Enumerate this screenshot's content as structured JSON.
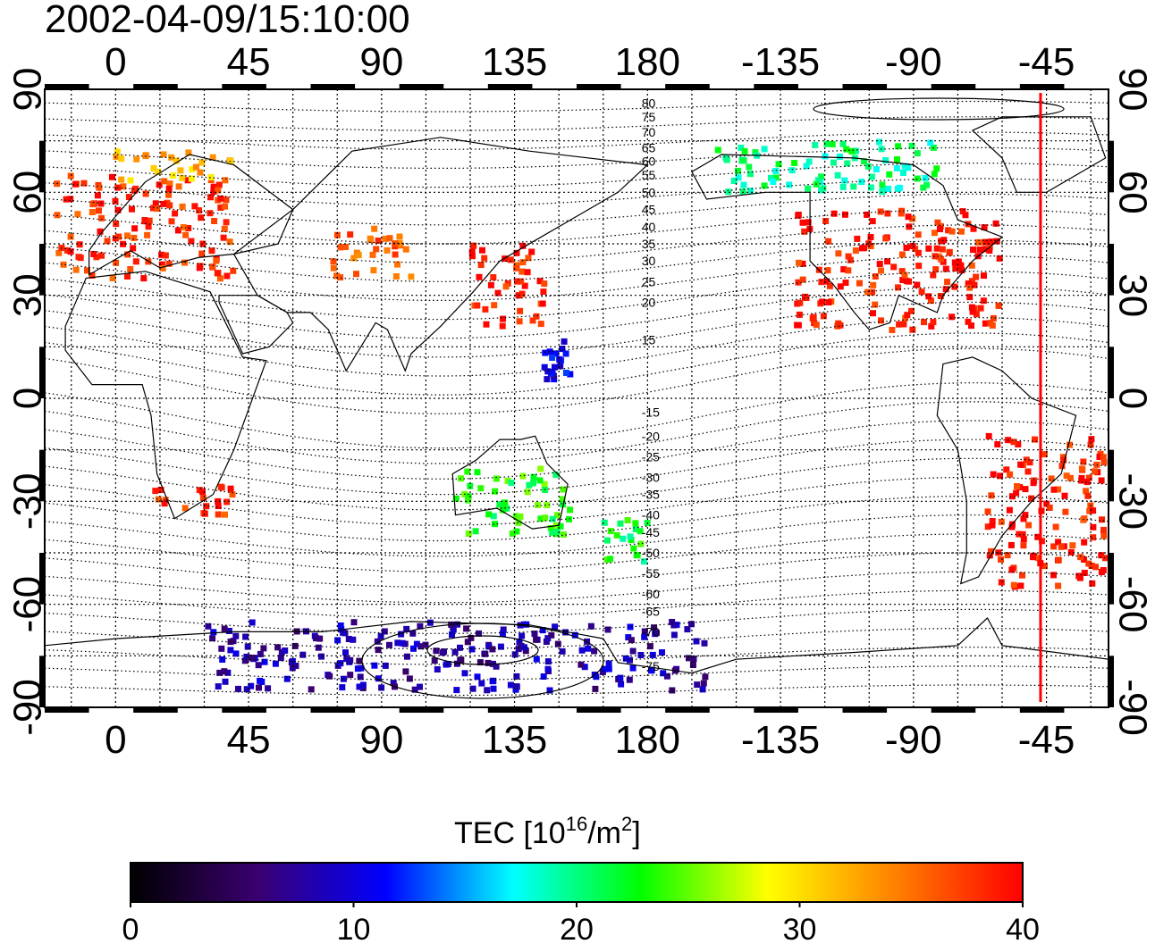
{
  "title": "2002-04-09/15:10:00",
  "axes": {
    "x_ticks": [
      "0",
      "45",
      "90",
      "135",
      "180",
      "-135",
      "-90",
      "-45"
    ],
    "x_tick_lons": [
      0,
      45,
      90,
      135,
      180,
      225,
      270,
      315
    ],
    "y_ticks": [
      "90",
      "60",
      "30",
      "0",
      "-30",
      "-60",
      "-90"
    ],
    "y_tick_lats": [
      90,
      60,
      30,
      0,
      -30,
      -60,
      -90
    ],
    "lon_range": [
      -24,
      336
    ],
    "lat_range": [
      -90,
      90
    ],
    "grid": true
  },
  "magnetic_latitude_labels": [
    "80",
    "75",
    "70",
    "65",
    "60",
    "55",
    "50",
    "45",
    "40",
    "35",
    "30",
    "25",
    "20",
    "15",
    "-15",
    "-20",
    "-25",
    "-30",
    "-35",
    "-40",
    "-45",
    "-50",
    "-55",
    "-60",
    "-65",
    "-70",
    "-75"
  ],
  "terminator": {
    "color": "#ff0000",
    "lon": 313
  },
  "colorbar": {
    "label_main": "TEC  [10",
    "label_sup1": "16",
    "label_mid": "/m",
    "label_sup2": "2",
    "label_end": "]",
    "min": 0,
    "max": 40,
    "ticks": [
      "0",
      "10",
      "20",
      "30",
      "40"
    ],
    "stops": [
      "#000000",
      "#3a0070",
      "#0000ff",
      "#00ffff",
      "#00ff00",
      "#ffff00",
      "#ff8000",
      "#ff0000"
    ]
  },
  "chart_data": {
    "type": "scatter",
    "title": "2002-04-09/15:10:00",
    "xlabel": "",
    "ylabel": "",
    "xlim": [
      -24,
      336
    ],
    "ylim": [
      -90,
      90
    ],
    "value_label": "TEC [10^16/m^2]",
    "value_range": [
      0,
      40
    ],
    "regions": [
      {
        "lon": [
          -20,
          40
        ],
        "lat": [
          35,
          65
        ],
        "tec": 38
      },
      {
        "lon": [
          0,
          40
        ],
        "lat": [
          63,
          72
        ],
        "tec": 32
      },
      {
        "lon": [
          70,
          100
        ],
        "lat": [
          35,
          50
        ],
        "tec": 36
      },
      {
        "lon": [
          120,
          145
        ],
        "lat": [
          20,
          45
        ],
        "tec": 39
      },
      {
        "lon": [
          230,
          300
        ],
        "lat": [
          20,
          55
        ],
        "tec": 39
      },
      {
        "lon": [
          295,
          335
        ],
        "lat": [
          -55,
          -10
        ],
        "tec": 39
      },
      {
        "lon": [
          10,
          40
        ],
        "lat": [
          -35,
          -25
        ],
        "tec": 38
      },
      {
        "lon": [
          115,
          155
        ],
        "lat": [
          -40,
          -20
        ],
        "tec": 23
      },
      {
        "lon": [
          165,
          180
        ],
        "lat": [
          -50,
          -35
        ],
        "tec": 22
      },
      {
        "lon": [
          200,
          280
        ],
        "lat": [
          60,
          75
        ],
        "tec": 20
      },
      {
        "lon": [
          145,
          155
        ],
        "lat": [
          5,
          20
        ],
        "tec": 10
      },
      {
        "lon": [
          30,
          200
        ],
        "lat": [
          -85,
          -65
        ],
        "tec": 8
      }
    ]
  }
}
